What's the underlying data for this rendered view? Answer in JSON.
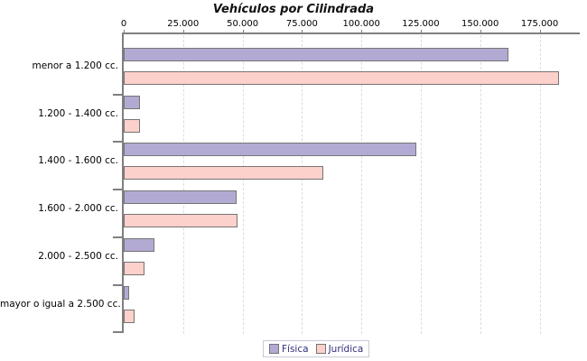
{
  "chart_data": {
    "type": "bar",
    "orientation": "horizontal",
    "title": "Vehículos por Cilindrada",
    "categories": [
      "menor a 1.200 cc.",
      "1.200 - 1.400 cc.",
      "1.400 - 1.600 cc.",
      "1.600 - 2.000 cc.",
      "2.000 - 2.500 cc.",
      "mayor o igual a 2.500 cc."
    ],
    "series": [
      {
        "name": "Física",
        "color": "#b3aad3",
        "values": [
          162000,
          6800,
          123000,
          47500,
          13000,
          2300
        ]
      },
      {
        "name": "Jurídica",
        "color": "#fcd0cb",
        "values": [
          183000,
          6800,
          84000,
          48000,
          8700,
          4700
        ]
      }
    ],
    "x_axis": {
      "min": 0,
      "max": 190000,
      "tick_values": [
        0,
        25000,
        50000,
        75000,
        100000,
        125000,
        150000,
        175000
      ],
      "tick_labels": [
        "0",
        "25.000",
        "50.000",
        "75.000",
        "100.000",
        "125.000",
        "150.000",
        "175.000"
      ],
      "grid": true
    },
    "legend": {
      "position": "bottom",
      "entries": [
        "Física",
        "Jurídica"
      ]
    }
  },
  "colors": {
    "bar_border": "#757575",
    "axis": "#808080",
    "gridline": "#dcdcdc",
    "legend_text": "#332e7a",
    "legend_border": "#c9c9d6",
    "title_text": "#111111",
    "label_text": "#000000",
    "background": "#ffffff"
  }
}
